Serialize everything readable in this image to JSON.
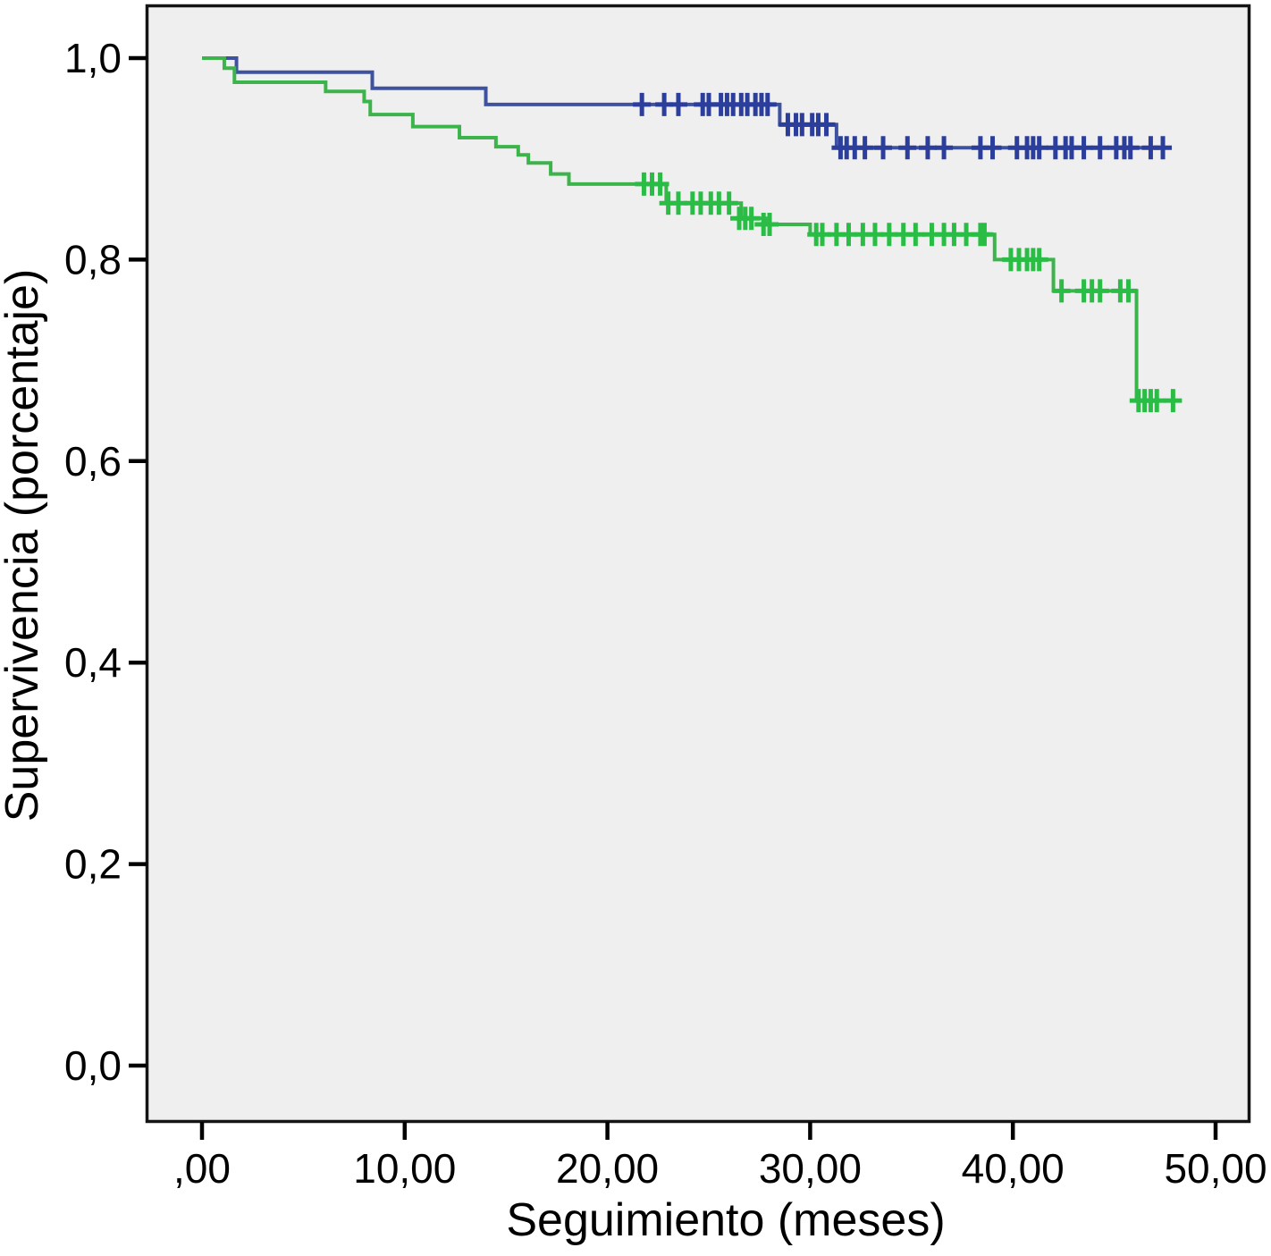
{
  "figure": {
    "background_color": "#ffffff",
    "plot_background_color": "#f0eff0",
    "border_color": "#141414"
  },
  "chart_data": {
    "type": "line",
    "subtype": "kaplan-meier-step-survival",
    "title": "",
    "xlabel": "Seguimiento (meses)",
    "ylabel": "Supervivencia (porcentaje)",
    "xlim": [
      0,
      50
    ],
    "ylim": [
      0.0,
      1.0
    ],
    "grid": false,
    "legend_position": "none",
    "x_ticks": [
      {
        "value": 0,
        "label": ",00"
      },
      {
        "value": 10,
        "label": "10,00"
      },
      {
        "value": 20,
        "label": "20,00"
      },
      {
        "value": 30,
        "label": "30,00"
      },
      {
        "value": 40,
        "label": "40,00"
      },
      {
        "value": 50,
        "label": "50,00"
      }
    ],
    "y_ticks": [
      {
        "value": 0.0,
        "label": "0,0"
      },
      {
        "value": 0.2,
        "label": "0,2"
      },
      {
        "value": 0.4,
        "label": "0,4"
      },
      {
        "value": 0.6,
        "label": "0,6"
      },
      {
        "value": 0.8,
        "label": "0,8"
      },
      {
        "value": 1.0,
        "label": "1,0"
      }
    ],
    "series": [
      {
        "id": "blue-curve",
        "line_color": "#3e52a0",
        "censor_color": "#2b3e9b",
        "end_time": 47.7,
        "steps": [
          [
            0.0,
            1.0
          ],
          [
            1.7,
            0.986
          ],
          [
            8.4,
            0.97
          ],
          [
            14.0,
            0.954
          ],
          [
            28.5,
            0.934
          ],
          [
            31.3,
            0.911
          ]
        ],
        "censors": [
          [
            21.7,
            0.954
          ],
          [
            22.8,
            0.954
          ],
          [
            23.5,
            0.954
          ],
          [
            24.7,
            0.954
          ],
          [
            25.0,
            0.954
          ],
          [
            25.6,
            0.954
          ],
          [
            25.9,
            0.954
          ],
          [
            26.2,
            0.954
          ],
          [
            26.6,
            0.954
          ],
          [
            26.9,
            0.954
          ],
          [
            27.3,
            0.954
          ],
          [
            27.6,
            0.954
          ],
          [
            27.9,
            0.954
          ],
          [
            28.9,
            0.934
          ],
          [
            29.3,
            0.934
          ],
          [
            29.6,
            0.934
          ],
          [
            30.1,
            0.934
          ],
          [
            30.4,
            0.934
          ],
          [
            30.8,
            0.934
          ],
          [
            31.5,
            0.911
          ],
          [
            31.8,
            0.911
          ],
          [
            32.2,
            0.911
          ],
          [
            32.7,
            0.911
          ],
          [
            33.6,
            0.911
          ],
          [
            34.8,
            0.911
          ],
          [
            35.8,
            0.911
          ],
          [
            36.6,
            0.911
          ],
          [
            38.4,
            0.911
          ],
          [
            39.0,
            0.911
          ],
          [
            40.2,
            0.911
          ],
          [
            40.7,
            0.911
          ],
          [
            41.0,
            0.911
          ],
          [
            41.3,
            0.911
          ],
          [
            42.1,
            0.911
          ],
          [
            42.6,
            0.911
          ],
          [
            42.9,
            0.911
          ],
          [
            43.5,
            0.911
          ],
          [
            44.3,
            0.911
          ],
          [
            45.1,
            0.911
          ],
          [
            45.5,
            0.911
          ],
          [
            45.8,
            0.911
          ],
          [
            46.8,
            0.911
          ],
          [
            47.4,
            0.911
          ]
        ]
      },
      {
        "id": "green-curve",
        "line_color": "#3cb44b",
        "censor_color": "#2abd45",
        "end_time": 48.2,
        "steps": [
          [
            0.0,
            1.0
          ],
          [
            1.1,
            0.99
          ],
          [
            1.6,
            0.976
          ],
          [
            6.1,
            0.967
          ],
          [
            8.0,
            0.957
          ],
          [
            8.3,
            0.944
          ],
          [
            10.4,
            0.932
          ],
          [
            12.7,
            0.921
          ],
          [
            14.5,
            0.912
          ],
          [
            15.6,
            0.904
          ],
          [
            16.1,
            0.896
          ],
          [
            17.2,
            0.885
          ],
          [
            18.1,
            0.875
          ],
          [
            22.9,
            0.856
          ],
          [
            26.6,
            0.841
          ],
          [
            27.8,
            0.835
          ],
          [
            30.0,
            0.825
          ],
          [
            39.1,
            0.8
          ],
          [
            42.0,
            0.769
          ],
          [
            46.1,
            0.66
          ]
        ],
        "censors": [
          [
            21.8,
            0.875
          ],
          [
            22.2,
            0.875
          ],
          [
            22.6,
            0.875
          ],
          [
            23.0,
            0.856
          ],
          [
            23.5,
            0.856
          ],
          [
            24.2,
            0.856
          ],
          [
            24.6,
            0.856
          ],
          [
            25.1,
            0.856
          ],
          [
            25.5,
            0.856
          ],
          [
            26.0,
            0.856
          ],
          [
            26.5,
            0.841
          ],
          [
            26.8,
            0.841
          ],
          [
            27.1,
            0.841
          ],
          [
            27.7,
            0.835
          ],
          [
            28.0,
            0.835
          ],
          [
            30.3,
            0.825
          ],
          [
            30.6,
            0.825
          ],
          [
            31.3,
            0.825
          ],
          [
            31.9,
            0.825
          ],
          [
            32.6,
            0.825
          ],
          [
            33.2,
            0.825
          ],
          [
            33.9,
            0.825
          ],
          [
            34.6,
            0.825
          ],
          [
            35.2,
            0.825
          ],
          [
            36.0,
            0.825
          ],
          [
            36.6,
            0.825
          ],
          [
            37.1,
            0.825
          ],
          [
            37.7,
            0.825
          ],
          [
            38.4,
            0.825
          ],
          [
            38.6,
            0.825
          ],
          [
            39.9,
            0.8
          ],
          [
            40.3,
            0.8
          ],
          [
            40.7,
            0.8
          ],
          [
            41.0,
            0.8
          ],
          [
            41.3,
            0.8
          ],
          [
            42.4,
            0.769
          ],
          [
            43.5,
            0.769
          ],
          [
            43.9,
            0.769
          ],
          [
            44.3,
            0.769
          ],
          [
            45.3,
            0.769
          ],
          [
            45.7,
            0.769
          ],
          [
            46.2,
            0.66
          ],
          [
            46.5,
            0.66
          ],
          [
            46.8,
            0.66
          ],
          [
            47.1,
            0.66
          ],
          [
            47.9,
            0.66
          ]
        ]
      }
    ]
  }
}
